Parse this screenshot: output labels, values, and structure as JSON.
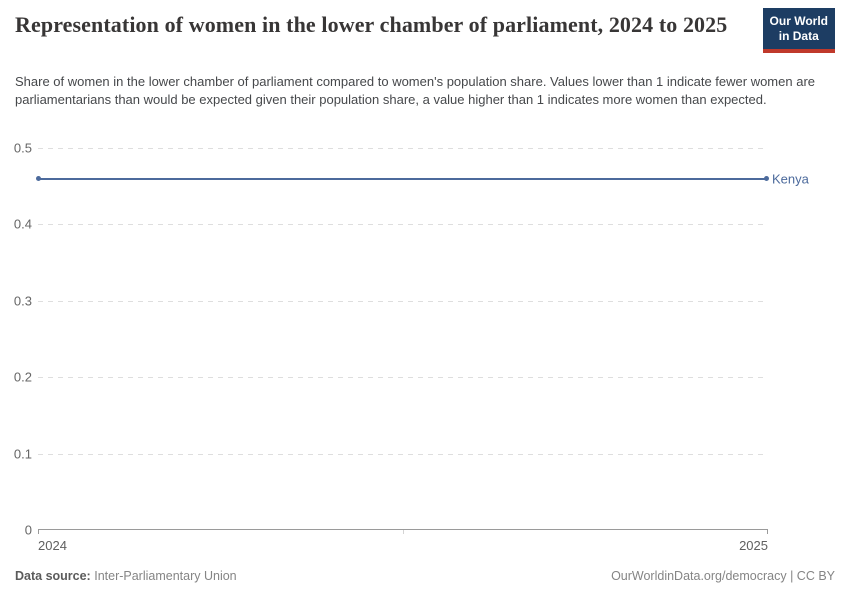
{
  "header": {
    "title": "Representation of women in the lower chamber of parliament, 2024 to 2025",
    "subtitle": "Share of women in the lower chamber of parliament compared to women's population share. Values lower than 1 indicate fewer women are parliamentarians than would be expected given their population share, a value higher than 1 indicates more women than expected.",
    "logo": {
      "line1": "Our World",
      "line2": "in Data",
      "bg_color": "#1d3d63",
      "stripe_color": "#c0392b"
    }
  },
  "chart_data": {
    "type": "line",
    "title": "Representation of women in the lower chamber of parliament, 2024 to 2025",
    "x": [
      2024,
      2025
    ],
    "xtick_labels": [
      "2024",
      "2025"
    ],
    "series": [
      {
        "name": "Kenya",
        "values": [
          0.46,
          0.46
        ],
        "color": "#4c6a9c"
      }
    ],
    "ylim": [
      0,
      0.5
    ],
    "yticks": [
      0,
      0.1,
      0.2,
      0.3,
      0.4,
      0.5
    ],
    "ytick_labels": [
      "0",
      "0.1",
      "0.2",
      "0.3",
      "0.4",
      "0.5"
    ],
    "grid": "horizontal-dashed",
    "legend": "inline-end-label",
    "grid_color": "#dedede",
    "axis_color": "#9a9a9a"
  },
  "footer": {
    "source_label": "Data source:",
    "source_value": "Inter-Parliamentary Union",
    "credit": "OurWorldinData.org/democracy | CC BY"
  }
}
